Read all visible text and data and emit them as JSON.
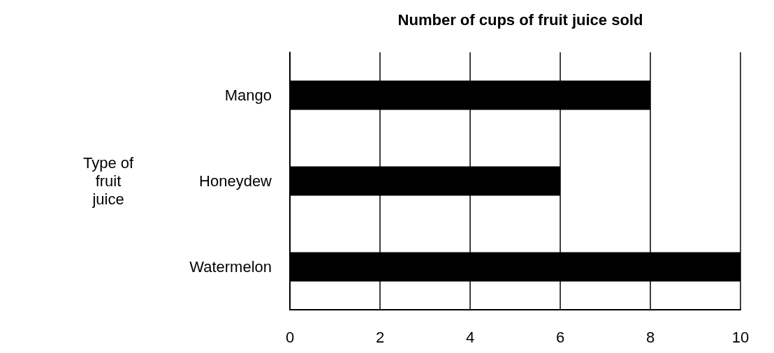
{
  "chart_data": {
    "type": "bar",
    "orientation": "horizontal",
    "title": "Number of cups of fruit juice sold",
    "ylabel": "Type of fruit juice",
    "categories": [
      "Mango",
      "Honeydew",
      "Watermelon"
    ],
    "values": [
      8,
      6,
      10
    ],
    "color": "#000000",
    "xlim": [
      0,
      10
    ],
    "xticks": [
      0,
      2,
      4,
      6,
      8,
      10
    ],
    "grid": "x"
  }
}
